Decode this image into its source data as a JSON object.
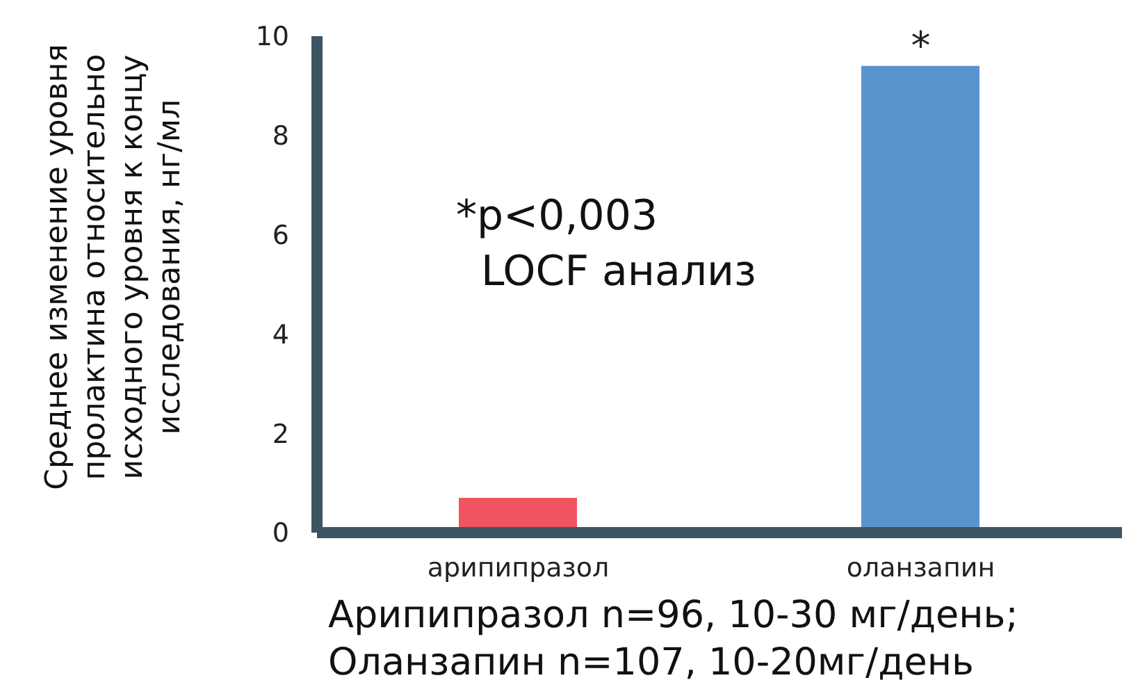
{
  "chart_data": {
    "type": "bar",
    "ylabel": "Среднее изменение уровня пролактина относительно исходного уровня к концу исследования, нг/мл",
    "categories": [
      "арипипразол",
      "оланзапин"
    ],
    "values": [
      0.7,
      9.4
    ],
    "colors": [
      "#f0545e",
      "#5b93cf"
    ],
    "ylim": [
      0,
      10
    ],
    "yticks": [
      0,
      2,
      4,
      6,
      8,
      10
    ],
    "grid": false,
    "legend": false,
    "annotations": [
      "*p<0,003",
      "LOCF анализ",
      {
        "text": "*",
        "x": "оланзапин",
        "y": 9.4
      },
      "Арипипразол n=96, 10-30 мг/день;",
      "Оланзапин n=107, 10-20мг/день"
    ]
  }
}
